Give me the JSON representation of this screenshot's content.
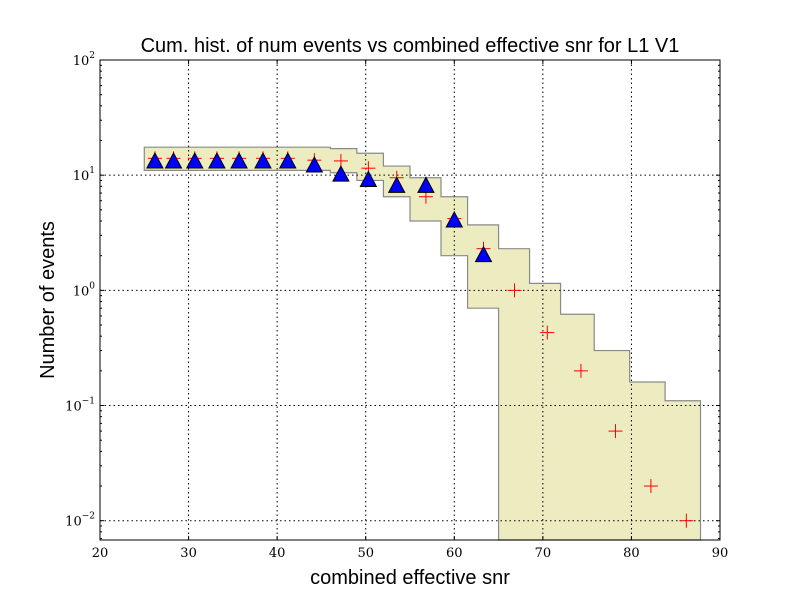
{
  "chart_data": {
    "type": "scatter",
    "title": "Cum. hist. of num events vs combined effective snr for L1 V1",
    "xlabel": "combined effective snr",
    "ylabel": "Number of events",
    "xlim": [
      20,
      90
    ],
    "ylim": [
      0.0068,
      100
    ],
    "yscale": "log",
    "grid": true,
    "x_ticks": [
      "20",
      "30",
      "40",
      "50",
      "60",
      "70",
      "80",
      "90"
    ],
    "y_ticks": [
      {
        "base": "10",
        "exp": "2",
        "value": 100
      },
      {
        "base": "10",
        "exp": "1",
        "value": 10
      },
      {
        "base": "10",
        "exp": "0",
        "value": 1
      },
      {
        "base": "10",
        "exp": "−1",
        "value": 0.1
      },
      {
        "base": "10",
        "exp": "−2",
        "value": 0.01
      }
    ],
    "series": [
      {
        "kind": "band",
        "color": "#dcdc8c",
        "edges": [
          25.0,
          28.3,
          31.0,
          34.0,
          37.0,
          40.0,
          43.0,
          46.0,
          49.0,
          52.0,
          55.0,
          58.5,
          61.5,
          65.0,
          68.5,
          72.0,
          75.8,
          79.8,
          83.8,
          87.8
        ],
        "upper": [
          17.5,
          17.5,
          17.5,
          17.5,
          17.5,
          17.5,
          17.5,
          17.0,
          15.5,
          12.0,
          9.5,
          6.5,
          3.7,
          2.3,
          1.15,
          0.62,
          0.3,
          0.16,
          0.11
        ],
        "lower": [
          11.0,
          11.0,
          11.0,
          11.0,
          11.0,
          11.0,
          11.0,
          10.5,
          9.0,
          6.5,
          4.0,
          2.0,
          0.7,
          0.0001,
          0.0001,
          0.0001,
          0.0001,
          0.0001,
          0.0001
        ]
      },
      {
        "kind": "markers",
        "marker": "plus",
        "color": "#ff0000",
        "x": [
          26.2,
          28.3,
          30.7,
          33.2,
          35.7,
          38.4,
          41.2,
          44.2,
          47.2,
          50.3,
          53.5,
          56.8,
          60.0,
          63.3,
          66.8,
          70.5,
          74.3,
          78.2,
          82.2,
          86.2
        ],
        "y": [
          14,
          14,
          14,
          14,
          14,
          14,
          14,
          13.5,
          13.3,
          11.5,
          9.5,
          6.5,
          4.2,
          2.3,
          1.0,
          0.43,
          0.2,
          0.06,
          0.02,
          0.01
        ]
      },
      {
        "kind": "markers",
        "marker": "triangle",
        "color": "#0000ff",
        "x": [
          26.2,
          28.3,
          30.7,
          33.2,
          35.7,
          38.4,
          41.2,
          44.2,
          47.2,
          50.3,
          53.5,
          56.8,
          60.0,
          63.3
        ],
        "y": [
          13,
          13,
          13,
          13,
          13,
          13,
          13,
          12,
          10,
          9,
          8,
          8,
          4,
          2
        ]
      }
    ]
  }
}
